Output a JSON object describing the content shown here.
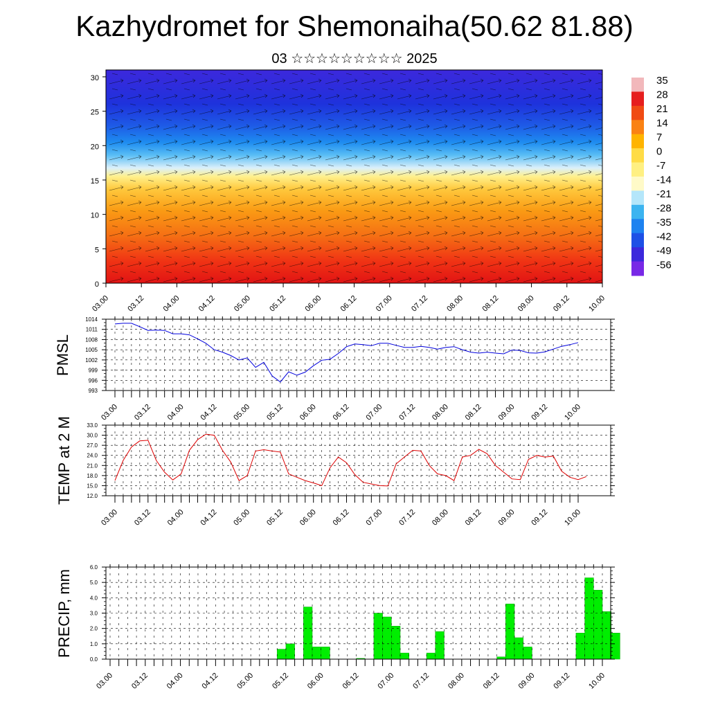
{
  "title": "Kazhydromet for Shemonaiha(50.62 81.88)",
  "subtitle": "03 ☆☆☆☆☆☆☆☆☆ 2025",
  "colors": {
    "pmsl_line": "#0000dd",
    "temp_line": "#dd0000",
    "precip_bar": "#00ee00",
    "precip_edge": "#00aa00"
  },
  "time_labels": [
    "03.00",
    "03.12",
    "04.00",
    "04.12",
    "05.00",
    "05.12",
    "06.00",
    "06.12",
    "07.00",
    "07.12",
    "08.00",
    "08.12",
    "09.00",
    "09.12",
    "10.00"
  ],
  "chart_data": [
    {
      "type": "heatmap",
      "name": "cross-section",
      "y_ticks": [
        "0",
        "5",
        "10",
        "15",
        "20",
        "25",
        "30"
      ],
      "ylim": [
        0,
        31
      ],
      "colorbar_labels": [
        "35",
        "28",
        "21",
        "14",
        "7",
        "0",
        "-7",
        "-14",
        "-21",
        "-28",
        "-35",
        "-42",
        "-49",
        "-56"
      ],
      "colorbar_colors": [
        "#f2b8bb",
        "#e61e1e",
        "#f04b14",
        "#fa8214",
        "#ffb400",
        "#ffdc46",
        "#fff082",
        "#fffac8",
        "#b4e6fa",
        "#3cb4f0",
        "#1e82f0",
        "#1e50e6",
        "#3c28dc",
        "#7828e6"
      ]
    },
    {
      "type": "line",
      "ylabel": "PMSL",
      "y_ticks": [
        "993",
        "996",
        "999",
        "1002",
        "1005",
        "1008",
        "1011",
        "1014"
      ],
      "ylim": [
        993,
        1014
      ],
      "values": [
        1012.6,
        1012.8,
        1012.8,
        1011.8,
        1010.7,
        1010.8,
        1010.7,
        1009.7,
        1009.7,
        1009.4,
        1008.2,
        1006.9,
        1005.0,
        1004.3,
        1003.3,
        1002.0,
        1002.6,
        999.8,
        1001.3,
        997.3,
        995.5,
        998.5,
        997.5,
        998.4,
        1000.3,
        1001.9,
        1002.2,
        1003.9,
        1005.9,
        1006.7,
        1006.5,
        1006.2,
        1006.9,
        1006.9,
        1006.3,
        1005.7,
        1005.7,
        1006.0,
        1005.7,
        1005.2,
        1005.7,
        1005.9,
        1005.0,
        1004.3,
        1004.0,
        1004.3,
        1004.0,
        1003.8,
        1004.9,
        1004.8,
        1004.1,
        1004.0,
        1004.4,
        1005.2,
        1006.0,
        1006.5,
        1007.1
      ]
    },
    {
      "type": "line",
      "ylabel": "TEMP at 2 M",
      "y_ticks": [
        "12.0",
        "15.0",
        "18.0",
        "21.0",
        "24.0",
        "27.0",
        "30.0",
        "33.0"
      ],
      "ylim": [
        12,
        33
      ],
      "values": [
        16.5,
        22.5,
        26.5,
        28.3,
        28.5,
        22.5,
        19.0,
        16.7,
        18.5,
        25.5,
        28.7,
        30.3,
        30.0,
        25.5,
        22.0,
        16.5,
        18.0,
        25.3,
        25.7,
        25.3,
        25.0,
        18.5,
        17.5,
        16.5,
        15.8,
        15.0,
        20.3,
        23.5,
        21.8,
        18.3,
        16.0,
        15.5,
        15.0,
        14.9,
        21.5,
        23.5,
        25.5,
        25.3,
        21.0,
        18.5,
        18.0,
        16.5,
        23.5,
        24.0,
        25.8,
        24.5,
        21.0,
        19.0,
        17.0,
        16.8,
        22.8,
        24.0,
        23.5,
        23.8,
        19.3,
        17.5,
        16.8,
        17.7
      ]
    },
    {
      "type": "bar",
      "ylabel": "PRECIP, mm",
      "y_ticks": [
        "0.0",
        "1.0",
        "2.0",
        "3.0",
        "4.0",
        "5.0",
        "6.0"
      ],
      "ylim": [
        0,
        6
      ],
      "values": [
        0,
        0,
        0,
        0,
        0,
        0,
        0,
        0,
        0,
        0,
        0,
        0,
        0,
        0,
        0,
        0,
        0,
        0,
        0,
        0.65,
        1.0,
        0,
        3.4,
        0.8,
        0.8,
        0,
        0,
        0,
        0.05,
        0,
        3.0,
        2.75,
        2.15,
        0.4,
        0,
        0,
        0.4,
        1.8,
        0,
        0,
        0,
        0,
        0,
        0,
        0.15,
        3.6,
        1.4,
        0.8,
        0,
        0,
        0,
        0,
        0,
        1.7,
        5.3,
        4.5,
        3.1,
        1.7
      ]
    }
  ]
}
